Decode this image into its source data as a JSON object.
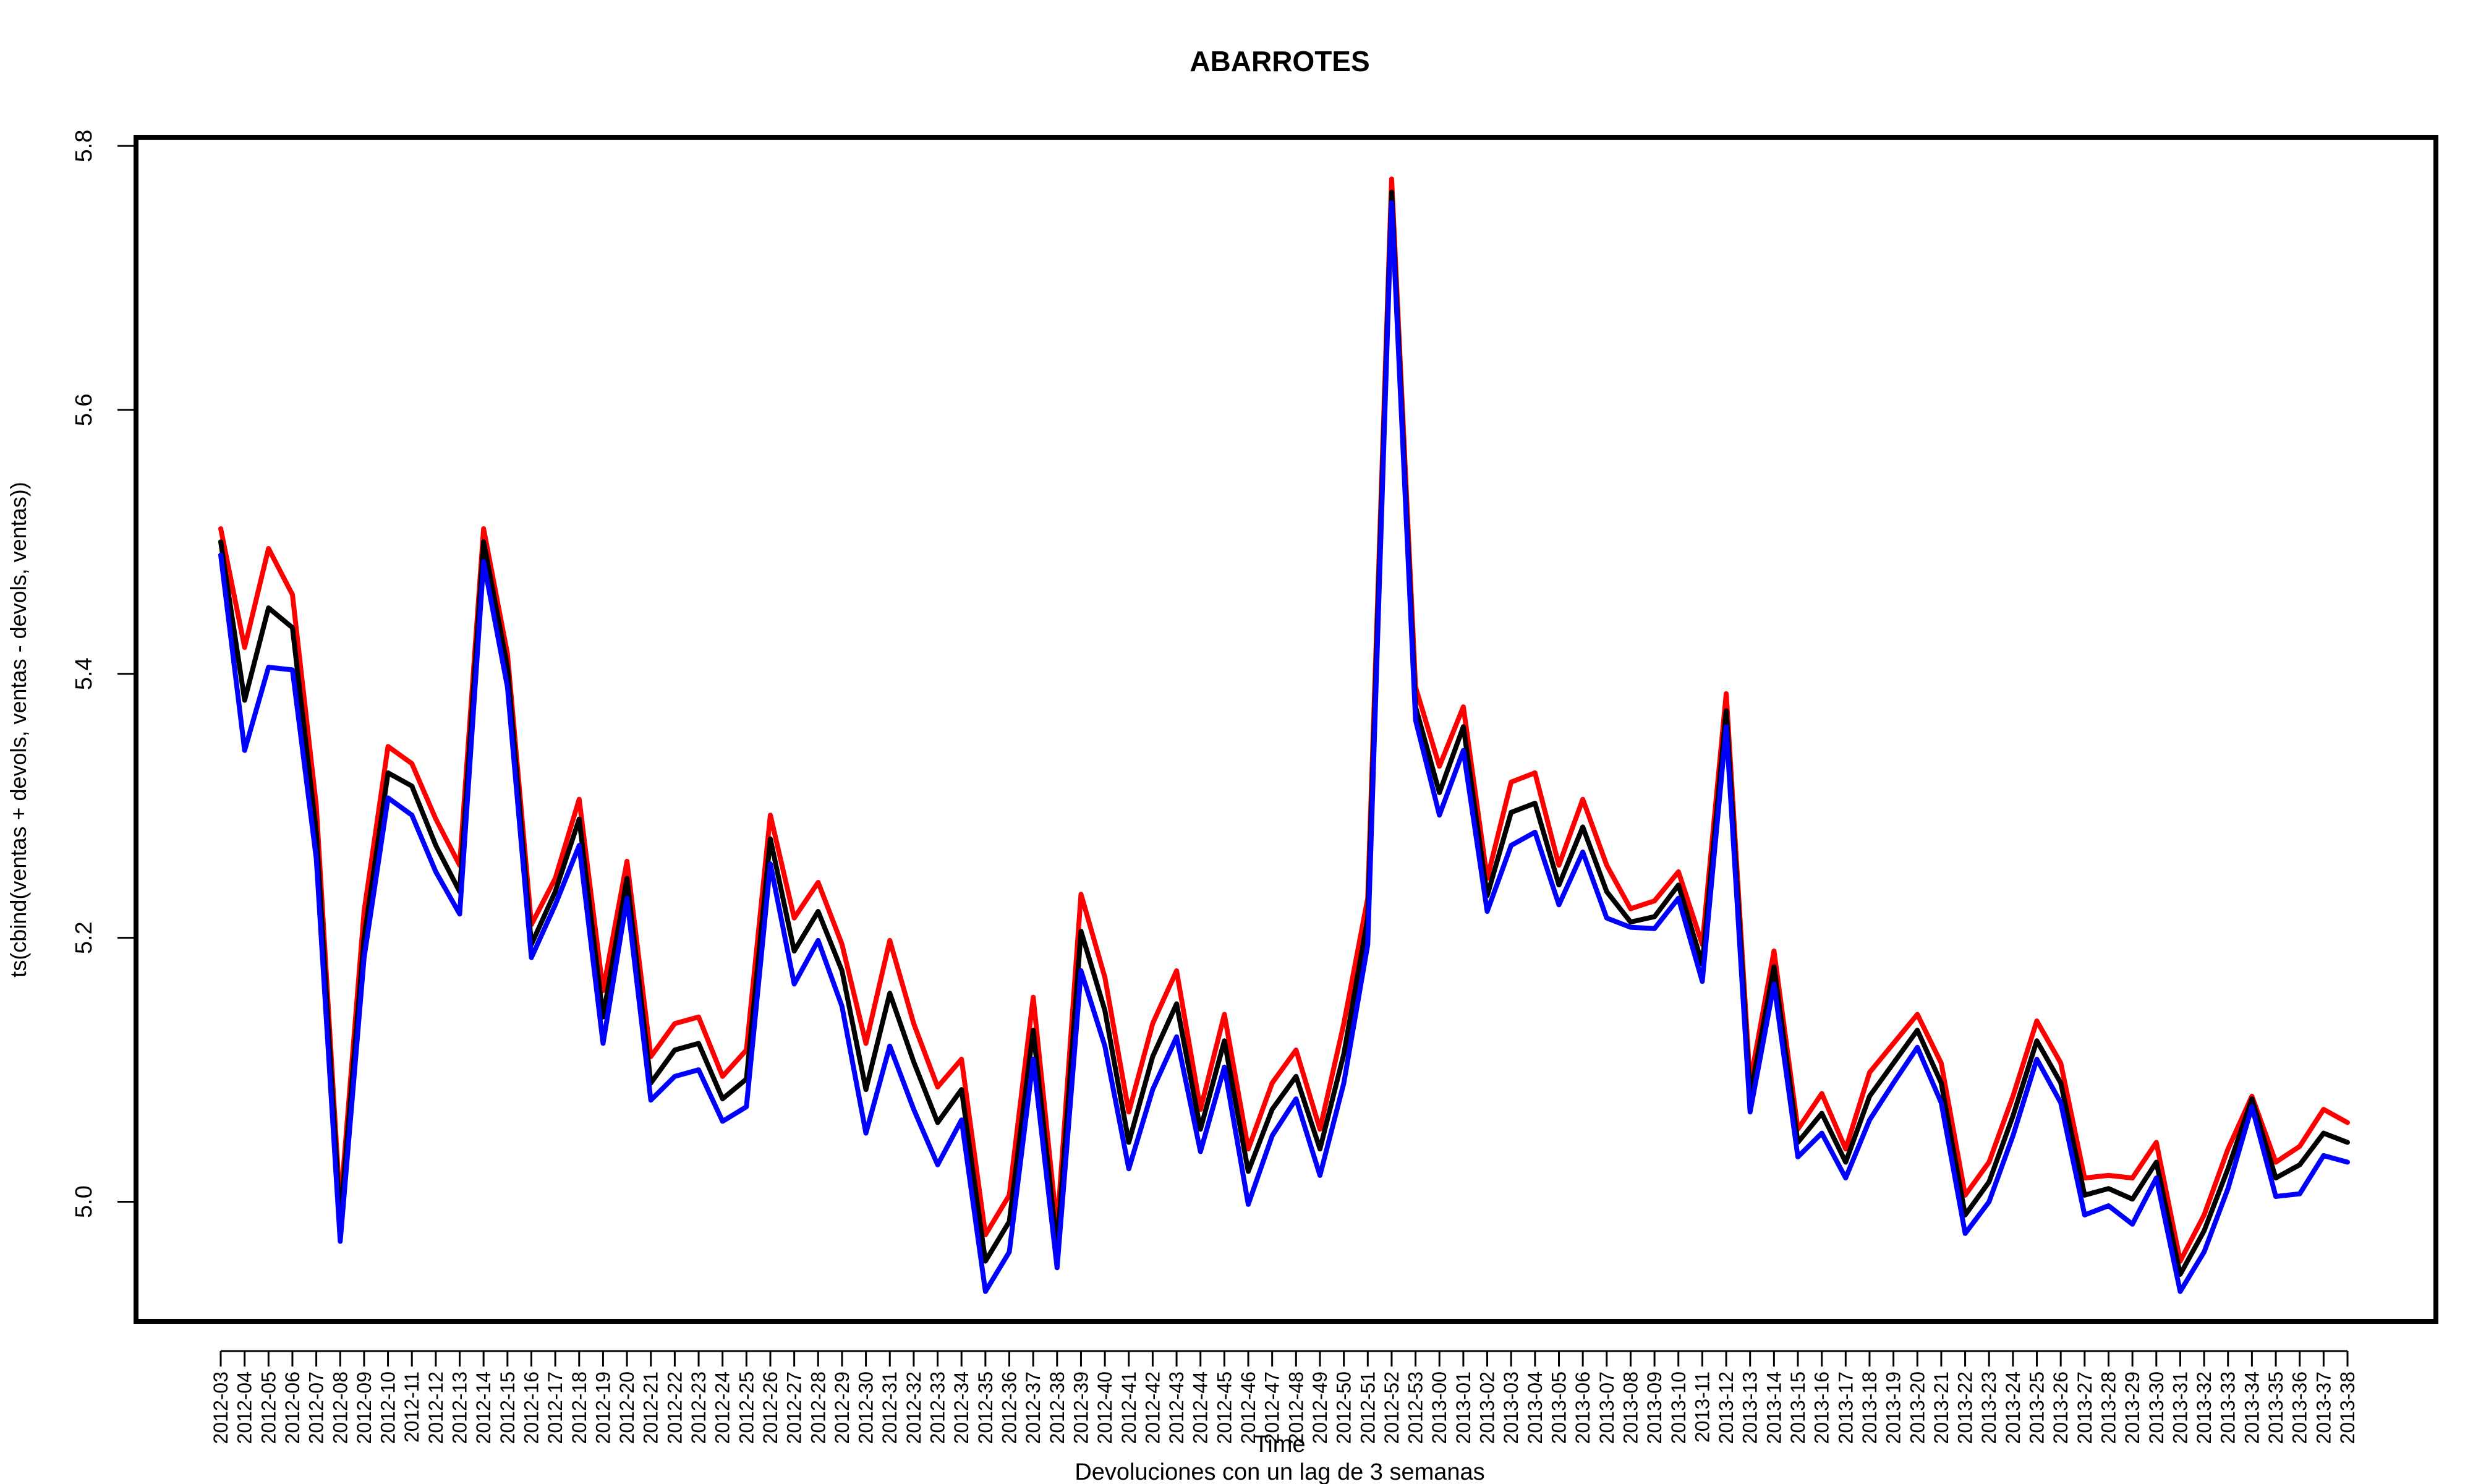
{
  "chart_data": {
    "type": "line",
    "title": "ABARROTES",
    "xlabel": "Time",
    "subtitle": "Devoluciones con un lag de 3 semanas",
    "ylabel": "ts(cbind(ventas + devols, ventas - devols, ventas))",
    "ylim": [
      4.9,
      5.8
    ],
    "yticks": [
      "5.0",
      "5.2",
      "5.4",
      "5.6",
      "5.8"
    ],
    "grid": false,
    "x": [
      "2012-03",
      "2012-04",
      "2012-05",
      "2012-06",
      "2012-07",
      "2012-08",
      "2012-09",
      "2012-10",
      "2012-11",
      "2012-12",
      "2012-13",
      "2012-14",
      "2012-15",
      "2012-16",
      "2012-17",
      "2012-18",
      "2012-19",
      "2012-20",
      "2012-21",
      "2012-22",
      "2012-23",
      "2012-24",
      "2012-25",
      "2012-26",
      "2012-27",
      "2012-28",
      "2012-29",
      "2012-30",
      "2012-31",
      "2012-32",
      "2012-33",
      "2012-34",
      "2012-35",
      "2012-36",
      "2012-37",
      "2012-38",
      "2012-39",
      "2012-40",
      "2012-41",
      "2012-42",
      "2012-43",
      "2012-44",
      "2012-45",
      "2012-46",
      "2012-47",
      "2012-48",
      "2012-49",
      "2012-50",
      "2012-51",
      "2012-52",
      "2012-53",
      "2013-00",
      "2013-01",
      "2013-02",
      "2013-03",
      "2013-04",
      "2013-05",
      "2013-06",
      "2013-07",
      "2013-08",
      "2013-09",
      "2013-10",
      "2013-11",
      "2013-12",
      "2013-13",
      "2013-14",
      "2013-15",
      "2013-16",
      "2013-17",
      "2013-18",
      "2013-19",
      "2013-20",
      "2013-21",
      "2013-22",
      "2013-23",
      "2013-24",
      "2013-25",
      "2013-26",
      "2013-27",
      "2013-28",
      "2013-29",
      "2013-30",
      "2013-31",
      "2013-32",
      "2013-33",
      "2013-34",
      "2013-35",
      "2013-36",
      "2013-37",
      "2013-38"
    ],
    "series": [
      {
        "color": "#ff0000",
        "values": [
          5.51,
          5.42,
          5.495,
          5.46,
          5.3,
          4.995,
          5.22,
          5.345,
          5.332,
          5.29,
          5.255,
          5.51,
          5.415,
          5.21,
          5.245,
          5.305,
          5.16,
          5.258,
          5.11,
          5.135,
          5.14,
          5.095,
          5.115,
          5.293,
          5.215,
          5.242,
          5.195,
          5.12,
          5.198,
          5.135,
          5.087,
          5.108,
          4.975,
          5.005,
          5.155,
          4.98,
          5.233,
          5.17,
          5.068,
          5.135,
          5.175,
          5.07,
          5.142,
          5.04,
          5.09,
          5.115,
          5.055,
          5.135,
          5.23,
          5.775,
          5.39,
          5.33,
          5.375,
          5.245,
          5.318,
          5.325,
          5.255,
          5.305,
          5.255,
          5.222,
          5.228,
          5.25,
          5.195,
          5.385,
          5.09,
          5.19,
          5.055,
          5.082,
          5.04,
          5.098,
          5.12,
          5.142,
          5.105,
          5.005,
          5.03,
          5.08,
          5.137,
          5.105,
          5.018,
          5.02,
          5.018,
          5.045,
          4.955,
          4.99,
          5.04,
          5.08,
          5.03,
          5.042,
          5.07,
          5.06
        ]
      },
      {
        "color": "#000000",
        "values": [
          5.5,
          5.38,
          5.45,
          5.435,
          5.28,
          4.985,
          5.2,
          5.325,
          5.315,
          5.27,
          5.235,
          5.5,
          5.405,
          5.195,
          5.235,
          5.29,
          5.14,
          5.245,
          5.09,
          5.115,
          5.12,
          5.078,
          5.093,
          5.275,
          5.19,
          5.22,
          5.175,
          5.085,
          5.158,
          5.106,
          5.06,
          5.085,
          4.955,
          4.985,
          5.13,
          4.965,
          5.205,
          5.145,
          5.045,
          5.11,
          5.15,
          5.055,
          5.122,
          5.023,
          5.07,
          5.095,
          5.04,
          5.112,
          5.215,
          5.765,
          5.375,
          5.31,
          5.36,
          5.232,
          5.295,
          5.302,
          5.24,
          5.284,
          5.235,
          5.212,
          5.216,
          5.24,
          5.18,
          5.372,
          5.08,
          5.178,
          5.045,
          5.067,
          5.03,
          5.08,
          5.105,
          5.13,
          5.09,
          4.99,
          5.015,
          5.065,
          5.122,
          5.09,
          5.005,
          5.01,
          5.002,
          5.03,
          4.945,
          4.978,
          5.025,
          5.078,
          5.018,
          5.028,
          5.052,
          5.045
        ]
      },
      {
        "color": "#0000ff",
        "values": [
          5.49,
          5.342,
          5.405,
          5.403,
          5.26,
          4.97,
          5.185,
          5.306,
          5.293,
          5.25,
          5.218,
          5.485,
          5.39,
          5.185,
          5.225,
          5.27,
          5.12,
          5.23,
          5.077,
          5.095,
          5.1,
          5.061,
          5.072,
          5.256,
          5.165,
          5.198,
          5.148,
          5.052,
          5.118,
          5.07,
          5.028,
          5.062,
          4.932,
          4.962,
          5.108,
          4.95,
          5.175,
          5.118,
          5.025,
          5.085,
          5.125,
          5.038,
          5.102,
          4.998,
          5.05,
          5.078,
          5.02,
          5.09,
          5.195,
          5.757,
          5.365,
          5.293,
          5.342,
          5.22,
          5.27,
          5.28,
          5.225,
          5.265,
          5.215,
          5.208,
          5.207,
          5.23,
          5.167,
          5.36,
          5.068,
          5.165,
          5.034,
          5.052,
          5.018,
          5.062,
          5.09,
          5.117,
          5.075,
          4.976,
          5.0,
          5.05,
          5.108,
          5.075,
          4.99,
          4.997,
          4.983,
          5.018,
          4.932,
          4.962,
          5.01,
          5.072,
          5.004,
          5.006,
          5.035,
          5.03
        ]
      }
    ]
  }
}
